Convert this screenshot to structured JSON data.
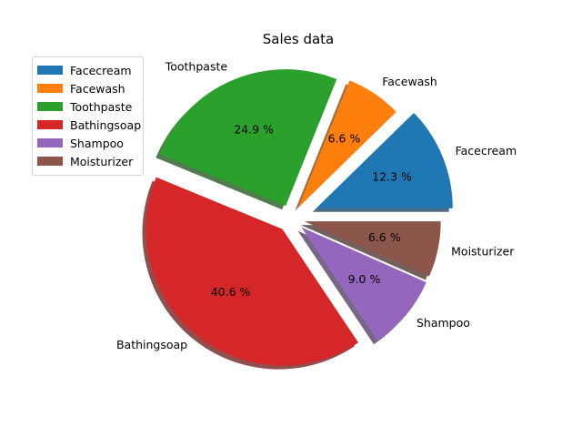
{
  "chart_data": {
    "type": "pie",
    "title": "Sales data",
    "categories": [
      "Facecream",
      "Facewash",
      "Toothpaste",
      "Bathingsoap",
      "Shampoo",
      "Moisturizer"
    ],
    "values": [
      12.3,
      6.6,
      24.9,
      40.6,
      9.0,
      6.6
    ],
    "pct_labels": [
      "12.3 %",
      "6.6 %",
      "24.9 %",
      "40.6 %",
      "9.0 %",
      "6.6 %"
    ],
    "colors": [
      "#1f77b4",
      "#ff7f0e",
      "#2ca02c",
      "#d62728",
      "#9467bd",
      "#8c564b"
    ],
    "explode": [
      0.2,
      0.1,
      0.1,
      0.1,
      0.1,
      0.1
    ],
    "shadow": true,
    "start_angle": 0,
    "counterclockwise": true,
    "legend_location": "upper-left"
  }
}
